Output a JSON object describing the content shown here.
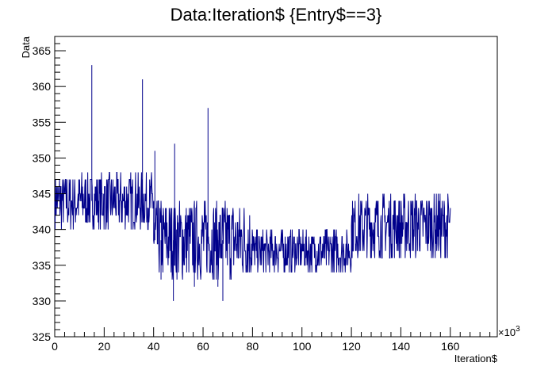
{
  "chart_data": {
    "type": "line",
    "title": "Data:Iteration$ {Entry$==3}",
    "xlabel": "Iteration$",
    "ylabel": "Data",
    "x_multiplier_label": "×10",
    "x_multiplier_exp": "3",
    "xlim": [
      0,
      179
    ],
    "ylim": [
      325,
      367
    ],
    "x_major_ticks": [
      0,
      20,
      40,
      60,
      80,
      100,
      120,
      140,
      160
    ],
    "y_major_ticks": [
      325,
      330,
      335,
      340,
      345,
      350,
      355,
      360,
      365
    ],
    "grid": false,
    "legend": "none",
    "line_color": "#00008b",
    "series": [
      {
        "x_units": "thousands",
        "segments": [
          {
            "x": [
              0,
              40
            ],
            "low": 340,
            "high": 348
          },
          {
            "x": [
              40,
              80
            ],
            "low": 333,
            "high": 344
          },
          {
            "x": [
              80,
              120
            ],
            "low": 334,
            "high": 340
          },
          {
            "x": [
              120,
              160
            ],
            "low": 336,
            "high": 345
          }
        ],
        "spikes": [
          {
            "x": 15,
            "y": 363
          },
          {
            "x": 35.5,
            "y": 361
          },
          {
            "x": 62,
            "y": 357
          },
          {
            "x": 48.5,
            "y": 352
          },
          {
            "x": 40.5,
            "y": 351
          },
          {
            "x": 68,
            "y": 330
          },
          {
            "x": 48,
            "y": 330
          },
          {
            "x": 43,
            "y": 333
          },
          {
            "x": 56.5,
            "y": 332
          },
          {
            "x": 66,
            "y": 332
          }
        ]
      }
    ]
  }
}
